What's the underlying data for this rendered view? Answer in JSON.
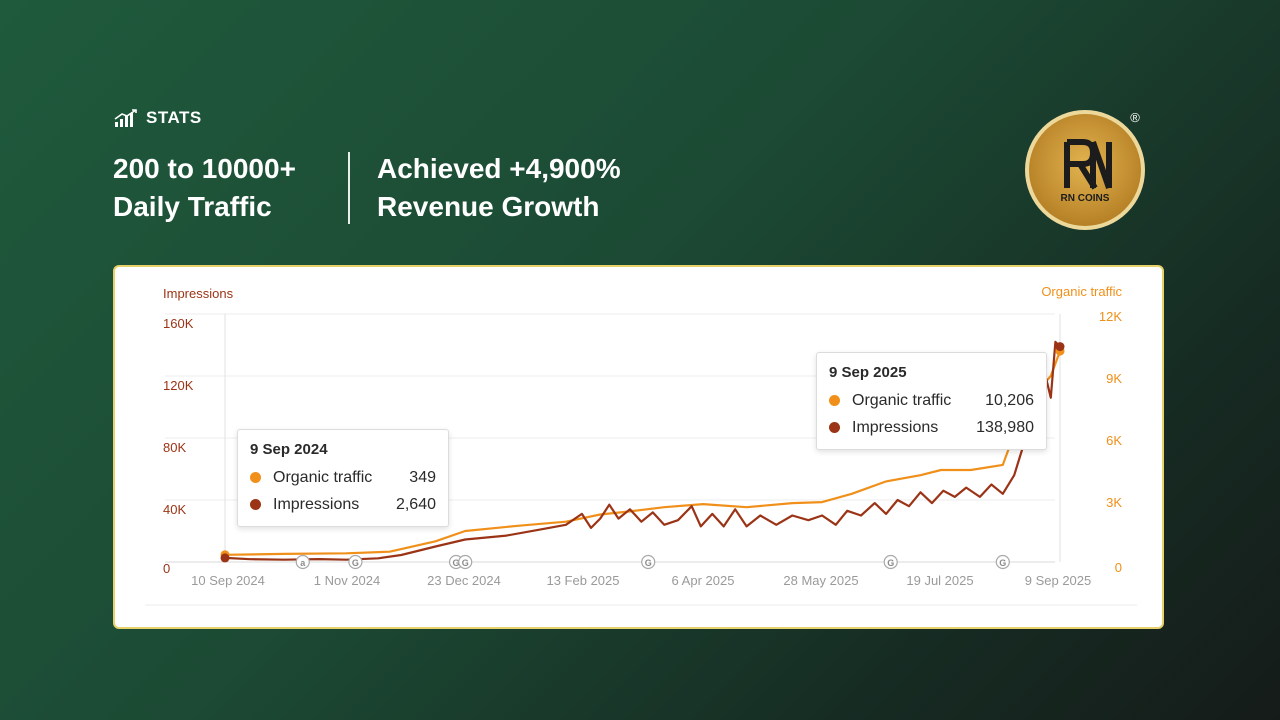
{
  "header": {
    "stats_label": "STATS",
    "left_line1": "200 to 10000+",
    "left_line2": "Daily Traffic",
    "right_line1": "Achieved +4,900%",
    "right_line2": "Revenue Growth"
  },
  "logo": {
    "text": "RN COINS",
    "registered": "®"
  },
  "colors": {
    "organic": "#f0901a",
    "impressions": "#9b3416",
    "card_border": "#e6d16a"
  },
  "tooltips": [
    {
      "date": "9 Sep 2024",
      "rows": [
        {
          "name": "Organic traffic",
          "value": "349"
        },
        {
          "name": "Impressions",
          "value": "2,640"
        }
      ]
    },
    {
      "date": "9 Sep 2025",
      "rows": [
        {
          "name": "Organic traffic",
          "value": "10,206"
        },
        {
          "name": "Impressions",
          "value": "138,980"
        }
      ]
    }
  ],
  "chart_data": {
    "type": "line",
    "left_axis_label": "Impressions",
    "right_axis_label": "Organic traffic",
    "left_ticks": [
      "0",
      "40K",
      "80K",
      "120K",
      "160K"
    ],
    "right_ticks": [
      "0",
      "3K",
      "6K",
      "9K",
      "12K"
    ],
    "ylim_left": [
      0,
      160000
    ],
    "ylim_right": [
      0,
      12000
    ],
    "x_ticks": [
      "10 Sep 2024",
      "1 Nov 2024",
      "23 Dec 2024",
      "13 Feb 2025",
      "6 Apr 2025",
      "28 May 2025",
      "19 Jul 2025",
      "9 Sep 2025"
    ],
    "x_range": [
      "2024-09-09",
      "2025-09-09"
    ],
    "grid": true,
    "markers": [
      {
        "label": "a",
        "date": "2024-10-13"
      },
      {
        "label": "G",
        "date": "2024-11-05"
      },
      {
        "label": "G",
        "date": "2024-12-19"
      },
      {
        "label": "G",
        "date": "2024-12-23"
      },
      {
        "label": "G",
        "date": "2025-03-13"
      },
      {
        "label": "G",
        "date": "2025-06-27"
      },
      {
        "label": "G",
        "date": "2025-08-15"
      }
    ],
    "series": [
      {
        "name": "Organic traffic",
        "axis": "right",
        "color": "#f0901a",
        "points": [
          [
            "2024-09-09",
            349
          ],
          [
            "2024-10-05",
            390
          ],
          [
            "2024-11-01",
            420
          ],
          [
            "2024-11-20",
            500
          ],
          [
            "2024-12-10",
            1000
          ],
          [
            "2024-12-23",
            1500
          ],
          [
            "2025-01-15",
            1750
          ],
          [
            "2025-02-05",
            1950
          ],
          [
            "2025-02-20",
            2300
          ],
          [
            "2025-03-05",
            2450
          ],
          [
            "2025-03-20",
            2650
          ],
          [
            "2025-04-06",
            2800
          ],
          [
            "2025-04-25",
            2650
          ],
          [
            "2025-05-15",
            2850
          ],
          [
            "2025-05-28",
            2900
          ],
          [
            "2025-06-10",
            3300
          ],
          [
            "2025-06-25",
            3900
          ],
          [
            "2025-07-10",
            4200
          ],
          [
            "2025-07-19",
            4450
          ],
          [
            "2025-08-01",
            4450
          ],
          [
            "2025-08-15",
            4700
          ],
          [
            "2025-08-20",
            6200
          ],
          [
            "2025-08-25",
            7500
          ],
          [
            "2025-09-01",
            8500
          ],
          [
            "2025-09-05",
            9000
          ],
          [
            "2025-09-09",
            10206
          ]
        ]
      },
      {
        "name": "Impressions",
        "axis": "left",
        "color": "#9b3416",
        "points": [
          [
            "2024-09-09",
            2640
          ],
          [
            "2024-09-20",
            1800
          ],
          [
            "2024-10-05",
            1500
          ],
          [
            "2024-10-20",
            1900
          ],
          [
            "2024-11-01",
            1500
          ],
          [
            "2024-11-15",
            2400
          ],
          [
            "2024-11-25",
            4500
          ],
          [
            "2024-12-10",
            10000
          ],
          [
            "2024-12-23",
            14500
          ],
          [
            "2025-01-10",
            17000
          ],
          [
            "2025-01-25",
            21000
          ],
          [
            "2025-02-05",
            24000
          ],
          [
            "2025-02-12",
            31000
          ],
          [
            "2025-02-16",
            22000
          ],
          [
            "2025-02-20",
            28000
          ],
          [
            "2025-02-24",
            37000
          ],
          [
            "2025-02-28",
            28000
          ],
          [
            "2025-03-05",
            34000
          ],
          [
            "2025-03-10",
            26000
          ],
          [
            "2025-03-15",
            32000
          ],
          [
            "2025-03-20",
            24000
          ],
          [
            "2025-03-26",
            27000
          ],
          [
            "2025-04-01",
            36000
          ],
          [
            "2025-04-05",
            23000
          ],
          [
            "2025-04-10",
            31000
          ],
          [
            "2025-04-15",
            23000
          ],
          [
            "2025-04-20",
            34000
          ],
          [
            "2025-04-25",
            23000
          ],
          [
            "2025-05-01",
            30000
          ],
          [
            "2025-05-08",
            24000
          ],
          [
            "2025-05-15",
            30000
          ],
          [
            "2025-05-22",
            27000
          ],
          [
            "2025-05-28",
            30000
          ],
          [
            "2025-06-03",
            24000
          ],
          [
            "2025-06-08",
            33000
          ],
          [
            "2025-06-14",
            30000
          ],
          [
            "2025-06-20",
            38000
          ],
          [
            "2025-06-25",
            31000
          ],
          [
            "2025-06-30",
            40000
          ],
          [
            "2025-07-05",
            36000
          ],
          [
            "2025-07-10",
            45000
          ],
          [
            "2025-07-15",
            38000
          ],
          [
            "2025-07-20",
            46000
          ],
          [
            "2025-07-25",
            42000
          ],
          [
            "2025-07-30",
            48000
          ],
          [
            "2025-08-05",
            42000
          ],
          [
            "2025-08-10",
            50000
          ],
          [
            "2025-08-15",
            44000
          ],
          [
            "2025-08-20",
            56000
          ],
          [
            "2025-08-25",
            80000
          ],
          [
            "2025-08-30",
            105000
          ],
          [
            "2025-09-03",
            118000
          ],
          [
            "2025-09-05",
            106000
          ],
          [
            "2025-09-07",
            142000
          ],
          [
            "2025-09-09",
            138980
          ]
        ]
      }
    ]
  }
}
